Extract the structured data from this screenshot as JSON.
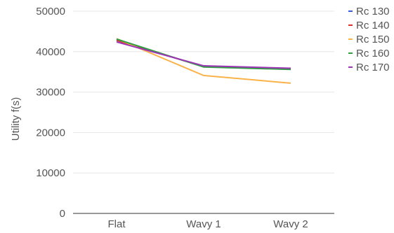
{
  "chart_data": {
    "type": "line",
    "title": "",
    "xlabel": "",
    "ylabel": "Utility f(s)",
    "categories": [
      "Flat",
      "Wavy 1",
      "Wavy 2"
    ],
    "ylim": [
      0,
      50000
    ],
    "yticks": [
      0,
      10000,
      20000,
      30000,
      40000,
      50000
    ],
    "grid": true,
    "legend_position": "right",
    "series": [
      {
        "name": "Rc 130",
        "color": "#3b5bdb",
        "values": [
          42800,
          36300,
          35700
        ]
      },
      {
        "name": "Rc 140",
        "color": "#e03131",
        "values": [
          42800,
          36300,
          35800
        ]
      },
      {
        "name": "Rc 150",
        "color": "#fab349",
        "values": [
          43200,
          34100,
          32200
        ]
      },
      {
        "name": "Rc 160",
        "color": "#2f9e44",
        "values": [
          43100,
          36200,
          35600
        ]
      },
      {
        "name": "Rc 170",
        "color": "#9c36b5",
        "values": [
          42400,
          36500,
          35900
        ]
      }
    ]
  }
}
